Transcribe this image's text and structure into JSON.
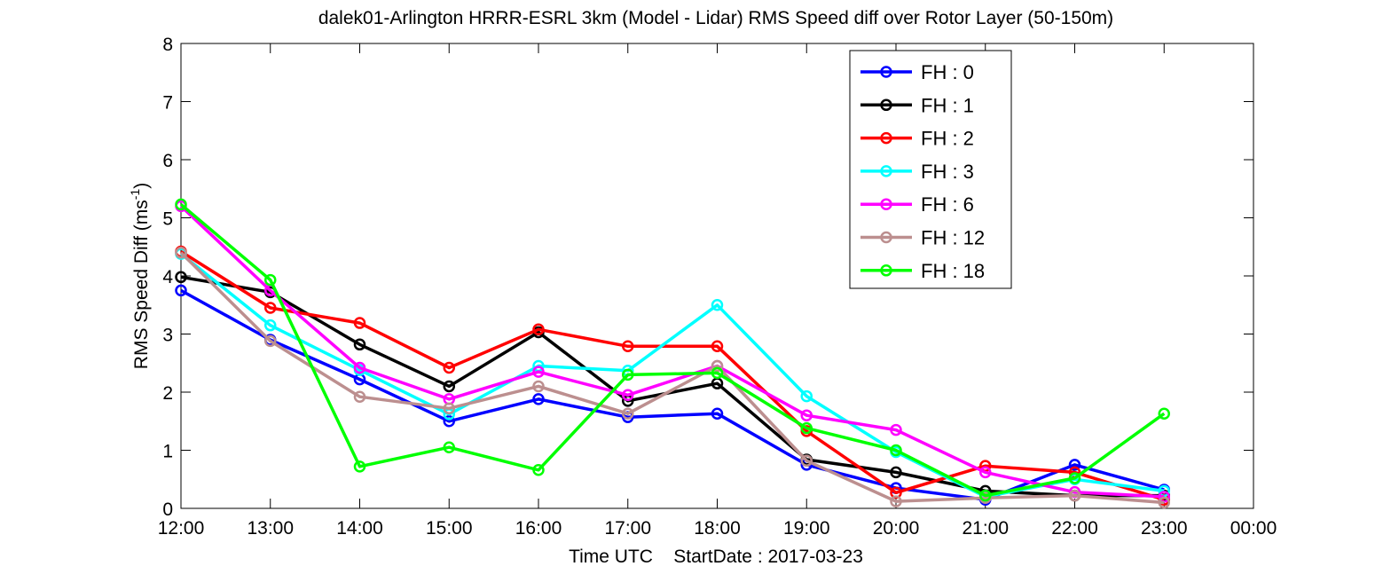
{
  "chart_data": {
    "type": "line",
    "title": "dalek01-Arlington HRRR-ESRL 3km (Model - Lidar) RMS Speed diff over Rotor Layer (50-150m)",
    "xlabel": "Time UTC    StartDate : 2017-03-23",
    "ylabel": "RMS Speed Diff (ms",
    "ylabel_sup": "-1",
    "ylabel_close": ")",
    "x_ticks": [
      "12:00",
      "13:00",
      "14:00",
      "15:00",
      "16:00",
      "17:00",
      "18:00",
      "19:00",
      "20:00",
      "21:00",
      "22:00",
      "23:00",
      "00:00"
    ],
    "y_ticks": [
      "0",
      "1",
      "2",
      "3",
      "4",
      "5",
      "6",
      "7",
      "8"
    ],
    "xlim": [
      0,
      12
    ],
    "ylim": [
      0,
      8
    ],
    "grid": false,
    "legend_position": "top-right",
    "series": [
      {
        "name": "FH : 0",
        "color": "#0000ff",
        "values": [
          3.75,
          2.9,
          2.22,
          1.5,
          1.88,
          1.57,
          1.63,
          0.75,
          0.35,
          0.15,
          0.75,
          0.32
        ]
      },
      {
        "name": "FH : 1",
        "color": "#000000",
        "values": [
          3.98,
          3.72,
          2.82,
          2.1,
          3.03,
          1.85,
          2.15,
          0.84,
          0.62,
          0.3,
          0.22,
          0.22
        ]
      },
      {
        "name": "FH : 2",
        "color": "#ff0000",
        "values": [
          4.42,
          3.45,
          3.19,
          2.42,
          3.08,
          2.79,
          2.79,
          1.33,
          0.27,
          0.73,
          0.62,
          0.15
        ]
      },
      {
        "name": "FH : 3",
        "color": "#00ffff",
        "values": [
          4.38,
          3.15,
          2.38,
          1.62,
          2.45,
          2.37,
          3.5,
          1.93,
          0.97,
          0.2,
          0.5,
          0.3
        ]
      },
      {
        "name": "FH : 6",
        "color": "#ff00ff",
        "values": [
          5.2,
          3.75,
          2.42,
          1.88,
          2.35,
          1.95,
          2.45,
          1.6,
          1.35,
          0.62,
          0.28,
          0.2
        ]
      },
      {
        "name": "FH : 12",
        "color": "#bc8f8f",
        "values": [
          4.4,
          2.88,
          1.92,
          1.72,
          2.1,
          1.63,
          2.45,
          0.82,
          0.12,
          0.18,
          0.22,
          0.1
        ]
      },
      {
        "name": "FH : 18",
        "color": "#00ff00",
        "values": [
          5.23,
          3.93,
          0.72,
          1.05,
          0.66,
          2.3,
          2.33,
          1.38,
          1.0,
          0.22,
          0.52,
          1.63
        ]
      }
    ]
  }
}
